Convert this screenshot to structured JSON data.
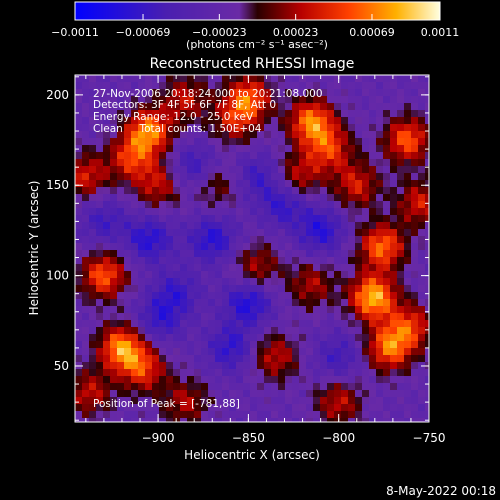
{
  "chart_data": {
    "type": "heatmap",
    "title": "Reconstructed RHESSI Image",
    "xlabel": "Heliocentric X (arcsec)",
    "ylabel": "Heliocentric Y (arcsec)",
    "xlim": [
      -946,
      -750
    ],
    "ylim": [
      19,
      211
    ],
    "x_ticks": [
      -900,
      -850,
      -800,
      -750
    ],
    "x_tick_labels": [
      "−900",
      "−850",
      "−800",
      "−750"
    ],
    "y_ticks": [
      50,
      100,
      150,
      200
    ],
    "y_tick_labels": [
      "50",
      "100",
      "150",
      "200"
    ],
    "colorbar": {
      "range": [
        -0.0011,
        0.0011
      ],
      "tick_labels": [
        "−0.0011",
        "−0.00069",
        "−0.00023",
        "0.00023",
        "0.00069",
        "0.0011"
      ],
      "unit_label": "(photons cm⁻² s⁻¹ asec⁻²)",
      "colors": [
        "#0000ff",
        "#4a1fb0",
        "#6a2aa6",
        "#2a0000",
        "#b80000",
        "#ff4000",
        "#ffb000",
        "#ffffe0"
      ]
    },
    "annotations": [
      "27-Nov-2006 20:18:24.000 to 20:21:08.000",
      "Detectors: 3F 4F 5F 6F 7F 8F, Att 0",
      "Energy Range: 12.0 - 25.0 keV",
      "Clean     Total counts: 1.50E+04"
    ],
    "peak_label": "Position of Peak = [-781,88]",
    "peak": [
      -781,
      88
    ],
    "blobs": [
      {
        "x": -781,
        "y": 88,
        "v": 1.0
      },
      {
        "x": -776,
        "y": 116,
        "v": 0.8
      },
      {
        "x": -772,
        "y": 60,
        "v": 0.8
      },
      {
        "x": -760,
        "y": 72,
        "v": 0.6
      },
      {
        "x": -815,
        "y": 185,
        "v": 0.85
      },
      {
        "x": -805,
        "y": 170,
        "v": 0.6
      },
      {
        "x": -822,
        "y": 155,
        "v": 0.5
      },
      {
        "x": -790,
        "y": 150,
        "v": 0.55
      },
      {
        "x": -762,
        "y": 175,
        "v": 0.75
      },
      {
        "x": -755,
        "y": 140,
        "v": 0.55
      },
      {
        "x": -905,
        "y": 180,
        "v": 0.85
      },
      {
        "x": -915,
        "y": 165,
        "v": 0.6
      },
      {
        "x": -900,
        "y": 150,
        "v": 0.5
      },
      {
        "x": -940,
        "y": 155,
        "v": 0.55
      },
      {
        "x": -885,
        "y": 198,
        "v": 0.5
      },
      {
        "x": -930,
        "y": 100,
        "v": 0.75
      },
      {
        "x": -920,
        "y": 60,
        "v": 0.9
      },
      {
        "x": -908,
        "y": 48,
        "v": 0.6
      },
      {
        "x": -938,
        "y": 35,
        "v": 0.5
      },
      {
        "x": -850,
        "y": 198,
        "v": 0.75
      },
      {
        "x": -858,
        "y": 185,
        "v": 0.45
      },
      {
        "x": -845,
        "y": 105,
        "v": 0.45
      },
      {
        "x": -835,
        "y": 55,
        "v": 0.5
      },
      {
        "x": -885,
        "y": 30,
        "v": 0.45
      },
      {
        "x": -800,
        "y": 30,
        "v": 0.5
      },
      {
        "x": -815,
        "y": 95,
        "v": 0.45
      },
      {
        "x": -868,
        "y": 150,
        "v": 0.35
      },
      {
        "x": -905,
        "y": 120,
        "v": -0.5
      },
      {
        "x": -890,
        "y": 90,
        "v": -0.4
      },
      {
        "x": -870,
        "y": 120,
        "v": -0.5
      },
      {
        "x": -850,
        "y": 85,
        "v": -0.55
      },
      {
        "x": -860,
        "y": 60,
        "v": -0.45
      },
      {
        "x": -830,
        "y": 140,
        "v": -0.45
      },
      {
        "x": -810,
        "y": 125,
        "v": -0.5
      },
      {
        "x": -800,
        "y": 55,
        "v": -0.35
      },
      {
        "x": -880,
        "y": 160,
        "v": -0.4
      },
      {
        "x": -930,
        "y": 130,
        "v": -0.35
      },
      {
        "x": -845,
        "y": 155,
        "v": -0.35
      },
      {
        "x": -900,
        "y": 75,
        "v": -0.4
      }
    ]
  },
  "footer": {
    "date": "8-May-2022 00:18"
  }
}
